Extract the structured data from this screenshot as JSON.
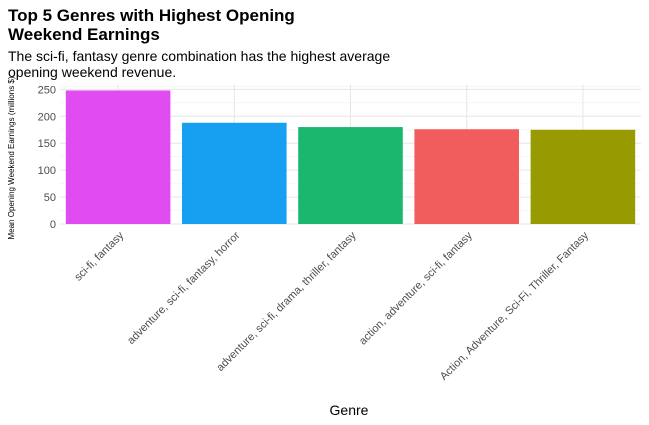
{
  "chart_data": {
    "type": "bar",
    "title": "Top 5 Genres with Highest Opening Weekend Earnings",
    "subtitle": "The sci-fi, fantasy genre combination has the highest average opening weekend revenue.",
    "xlabel": "Genre",
    "ylabel": "Mean Opening Weekend Earnings (millions $)",
    "categories": [
      "sci-fi, fantasy",
      "adventure, sci-fi, fantasy, horror",
      "adventure, sci-fi, drama, thriller, fantasy",
      "action, adventure, sci-fi, fantasy",
      "Action, Adventure, Sci-Fi, Thriller, Fantasy"
    ],
    "values": [
      248,
      188,
      180,
      176,
      175
    ],
    "colors": [
      "#E14CF2",
      "#17A0F2",
      "#1AB86E",
      "#F15D5D",
      "#979A00"
    ],
    "ylim": [
      0,
      260
    ],
    "yticks": [
      0,
      50,
      100,
      150,
      200,
      250
    ],
    "grid": true,
    "legend": "none"
  }
}
